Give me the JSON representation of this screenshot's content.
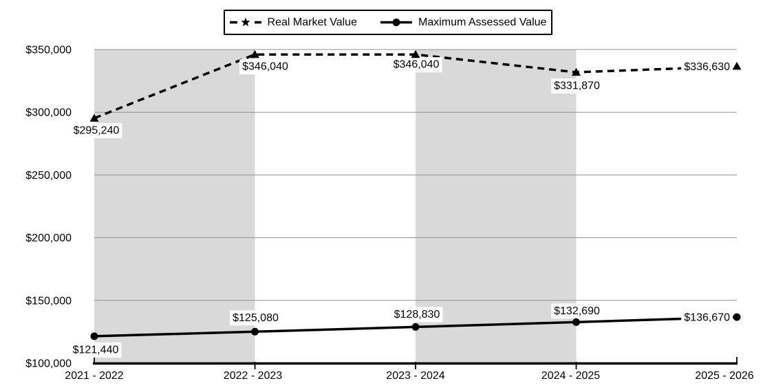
{
  "chart_data": {
    "type": "line",
    "title": "",
    "categories": [
      "2021 - 2022",
      "2022 - 2023",
      "2023 - 2024",
      "2024 - 2025",
      "2025 - 2026"
    ],
    "series": [
      {
        "name": "Real Market Value",
        "line_style": "dashed",
        "marker": "triangle",
        "values": [
          295240,
          346040,
          346040,
          331870,
          336630
        ],
        "point_labels": [
          "$295,240",
          "$346,040",
          "$346,040",
          "$331,870",
          "$336,630"
        ]
      },
      {
        "name": "Maximum Assessed Value",
        "line_style": "solid",
        "marker": "circle",
        "values": [
          121440,
          125080,
          128830,
          132690,
          136670
        ],
        "point_labels": [
          "$121,440",
          "$125,080",
          "$128,830",
          "$132,690",
          "$136,670"
        ]
      }
    ],
    "ylim": [
      100000,
      350000
    ],
    "y_tick_interval": 50000,
    "y_tick_labels": [
      "$350,000",
      "$300,000",
      "$250,000",
      "$200,000",
      "$150,000",
      "$100,000"
    ],
    "grid": "horizontal",
    "legend_position": "top-center",
    "shaded_band_slots": [
      0,
      2
    ],
    "colors": {
      "line": "#000000",
      "band": "#d9d9d9",
      "gridline": "#8f8f8f",
      "axis": "#000000",
      "label_bg": "#ffffff",
      "background": "#ffffff"
    }
  }
}
